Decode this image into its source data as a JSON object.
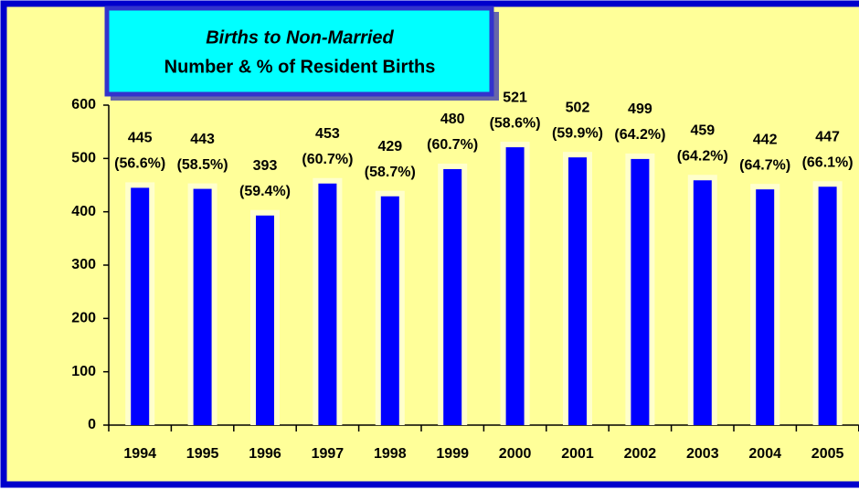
{
  "chart_data": {
    "type": "bar",
    "title": "Births to Non-Married",
    "subtitle": "Number & % of Resident Births",
    "categories": [
      "1994",
      "1995",
      "1996",
      "1997",
      "1998",
      "1999",
      "2000",
      "2001",
      "2002",
      "2003",
      "2004",
      "2005"
    ],
    "values": [
      445,
      443,
      393,
      453,
      429,
      480,
      521,
      502,
      499,
      459,
      442,
      447
    ],
    "percentages": [
      56.6,
      58.5,
      59.4,
      60.7,
      58.7,
      60.7,
      58.6,
      59.9,
      64.2,
      64.2,
      64.7,
      66.1
    ],
    "percentage_labels": [
      "(56.6%)",
      "(58.5%)",
      "(59.4%)",
      "(60.7%)",
      "(58.7%)",
      "(60.7%)",
      "(58.6%)",
      "(59.9%)",
      "(64.2%)",
      "(64.2%)",
      "(64.7%)",
      "(66.1%)"
    ],
    "color": "#0000ff",
    "ylim": [
      0,
      600
    ],
    "yticks": [
      0,
      100,
      200,
      300,
      400,
      500,
      600
    ],
    "grid": false
  }
}
